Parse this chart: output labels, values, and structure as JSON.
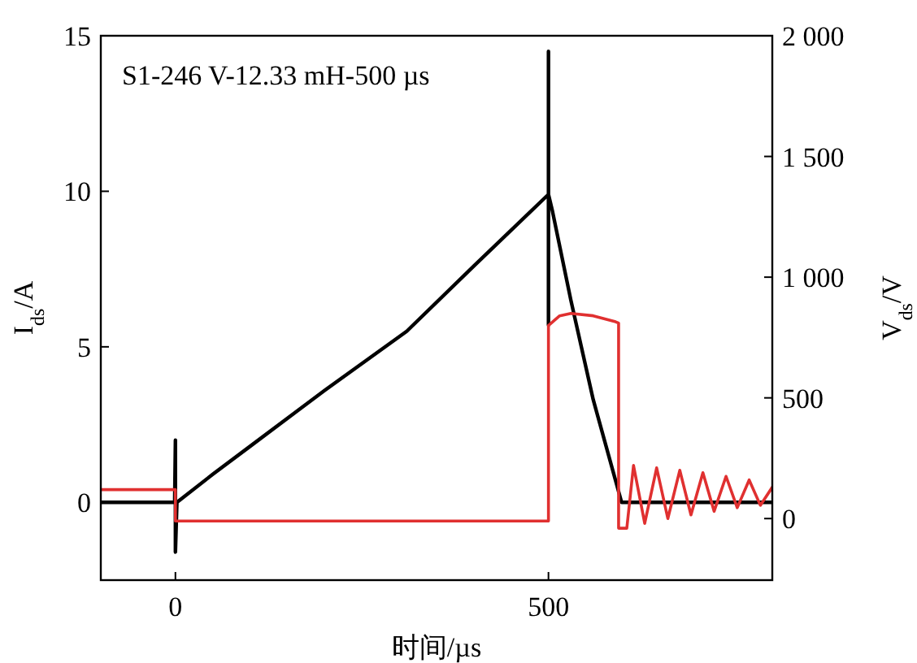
{
  "chart_data": {
    "type": "line",
    "xlabel": "时间/µs",
    "ylabel": "I$_{ds}$/A",
    "y2label": "V$_{ds}$/V",
    "annotations": [
      "S1-246 V-12.33 mH-500 µs"
    ],
    "xlim": [
      -100,
      800
    ],
    "xticks": [
      0,
      500
    ],
    "ylim": [
      -2.5,
      15
    ],
    "yticks": [
      0,
      5,
      10,
      15
    ],
    "y2lim": [
      -255,
      2000
    ],
    "y2ticks": [
      0,
      {
        "value": 500,
        "label": "500"
      },
      {
        "value": 1000,
        "label": "1 000"
      },
      {
        "value": 1500,
        "label": "1 500"
      },
      {
        "value": 2000,
        "label": "2 000"
      }
    ],
    "grid": false,
    "marker": "none",
    "line_style": "solid",
    "series": [
      {
        "color": "#000000",
        "x": [
          -100,
          -50,
          -1,
          0,
          0,
          2,
          50,
          100,
          200,
          310,
          400,
          500,
          500,
          500,
          500,
          505,
          530,
          560,
          598,
          650,
          700,
          800
        ],
        "values": [
          0,
          0,
          0,
          2.0,
          -1.6,
          0,
          0.9,
          1.8,
          3.6,
          5.5,
          7.6,
          9.9,
          14.5,
          5.7,
          9.9,
          9.4,
          6.5,
          3.3,
          0,
          0,
          0,
          0
        ]
      },
      {
        "color": "#e03030",
        "axis": "y2",
        "x": [
          -100,
          0,
          0,
          500,
          500,
          515,
          530,
          560,
          590,
          594,
          594,
          605,
          614,
          629,
          645,
          660,
          676,
          691,
          707,
          722,
          738,
          753,
          769,
          784,
          800
        ],
        "values": [
          120,
          120,
          -10,
          -10,
          800,
          840,
          850,
          840,
          815,
          810,
          -40,
          -40,
          220,
          -20,
          210,
          0,
          200,
          15,
          190,
          30,
          175,
          45,
          160,
          55,
          130
        ]
      }
    ]
  }
}
